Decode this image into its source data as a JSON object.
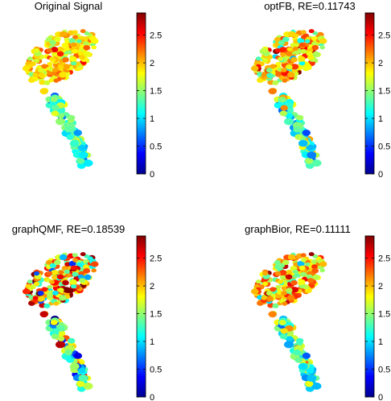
{
  "chart_data": [
    {
      "type": "scatter",
      "title": "Original Signal",
      "colorbar": {
        "colormap": "jet",
        "clim": [
          0,
          2.9
        ],
        "ticks": [
          "0",
          "0.5",
          "1",
          "1.5",
          "2",
          "2.5"
        ]
      },
      "head_mean": 1.95,
      "head_jitter": 0.22,
      "stem_mean": 1.3,
      "stem_jitter": 0.28,
      "noise": 0.05
    },
    {
      "type": "scatter",
      "title": "optFB, RE=0.11743",
      "colorbar": {
        "colormap": "jet",
        "clim": [
          0,
          2.9
        ],
        "ticks": [
          "0",
          "0.5",
          "1",
          "1.5",
          "2",
          "2.5"
        ]
      },
      "head_mean": 1.95,
      "head_jitter": 0.28,
      "stem_mean": 1.3,
      "stem_jitter": 0.3,
      "noise": 0.12
    },
    {
      "type": "scatter",
      "title": "graphQMF, RE=0.18539",
      "colorbar": {
        "colormap": "jet",
        "clim": [
          0,
          2.9
        ],
        "ticks": [
          "0",
          "0.5",
          "1",
          "1.5",
          "2",
          "2.5"
        ]
      },
      "head_mean": 2.0,
      "head_jitter": 0.4,
      "stem_mean": 1.35,
      "stem_jitter": 0.35,
      "noise": 0.25
    },
    {
      "type": "scatter",
      "title": "graphBior, RE=0.11111",
      "colorbar": {
        "colormap": "jet",
        "clim": [
          0,
          2.9
        ],
        "ticks": [
          "0",
          "0.5",
          "1",
          "1.5",
          "2",
          "2.5"
        ]
      },
      "head_mean": 2.0,
      "head_jitter": 0.3,
      "stem_mean": 1.3,
      "stem_jitter": 0.32,
      "noise": 0.14
    }
  ]
}
